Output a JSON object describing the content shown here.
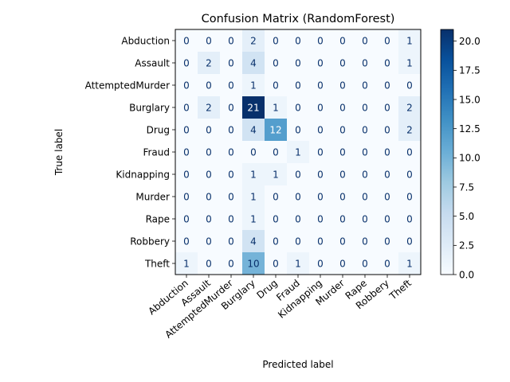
{
  "chart_data": {
    "type": "heatmap",
    "title": "Confusion Matrix (RandomForest)",
    "xlabel": "Predicted label",
    "ylabel": "True label",
    "x_categories": [
      "Abduction",
      "Assault",
      "AttemptedMurder",
      "Burglary",
      "Drug",
      "Fraud",
      "Kidnapping",
      "Murder",
      "Rape",
      "Robbery",
      "Theft"
    ],
    "y_categories": [
      "Abduction",
      "Assault",
      "AttemptedMurder",
      "Burglary",
      "Drug",
      "Fraud",
      "Kidnapping",
      "Murder",
      "Rape",
      "Robbery",
      "Theft"
    ],
    "values": [
      [
        0,
        0,
        0,
        2,
        0,
        0,
        0,
        0,
        0,
        0,
        1
      ],
      [
        0,
        2,
        0,
        4,
        0,
        0,
        0,
        0,
        0,
        0,
        1
      ],
      [
        0,
        0,
        0,
        1,
        0,
        0,
        0,
        0,
        0,
        0,
        0
      ],
      [
        0,
        2,
        0,
        21,
        1,
        0,
        0,
        0,
        0,
        0,
        2
      ],
      [
        0,
        0,
        0,
        4,
        12,
        0,
        0,
        0,
        0,
        0,
        2
      ],
      [
        0,
        0,
        0,
        0,
        0,
        1,
        0,
        0,
        0,
        0,
        0
      ],
      [
        0,
        0,
        0,
        1,
        1,
        0,
        0,
        0,
        0,
        0,
        0
      ],
      [
        0,
        0,
        0,
        1,
        0,
        0,
        0,
        0,
        0,
        0,
        0
      ],
      [
        0,
        0,
        0,
        1,
        0,
        0,
        0,
        0,
        0,
        0,
        0
      ],
      [
        0,
        0,
        0,
        4,
        0,
        0,
        0,
        0,
        0,
        0,
        0
      ],
      [
        1,
        0,
        0,
        10,
        0,
        1,
        0,
        0,
        0,
        0,
        1
      ]
    ],
    "colormap": "Blues",
    "colorbar": {
      "range": [
        0,
        21
      ],
      "ticks": [
        0.0,
        2.5,
        5.0,
        7.5,
        10.0,
        12.5,
        15.0,
        17.5,
        20.0
      ],
      "tick_labels": [
        "0.0",
        "2.5",
        "5.0",
        "7.5",
        "10.0",
        "12.5",
        "15.0",
        "17.5",
        "20.0"
      ]
    },
    "text_color_light": "#ffffff",
    "text_color_dark": "#08306b"
  }
}
